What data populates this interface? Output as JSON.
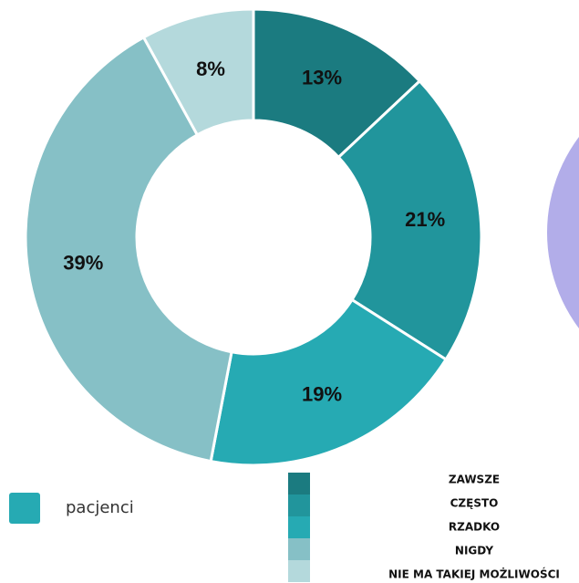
{
  "chart_data": {
    "type": "pie",
    "donut": true,
    "series_name": "pacjenci",
    "series_color": "#26aab3",
    "categories": [
      "ZAWSZE",
      "CZĘSTO",
      "RZADKO",
      "NIGDY",
      "NIE MA TAKIEJ MOŻLIWOŚCI"
    ],
    "values": [
      13,
      21,
      19,
      39,
      8
    ],
    "value_labels": [
      "13%",
      "21%",
      "19%",
      "39%",
      "8%"
    ],
    "colors": [
      "#1b7b80",
      "#21959c",
      "#26aab3",
      "#86c0c6",
      "#b4d9dc"
    ]
  }
}
